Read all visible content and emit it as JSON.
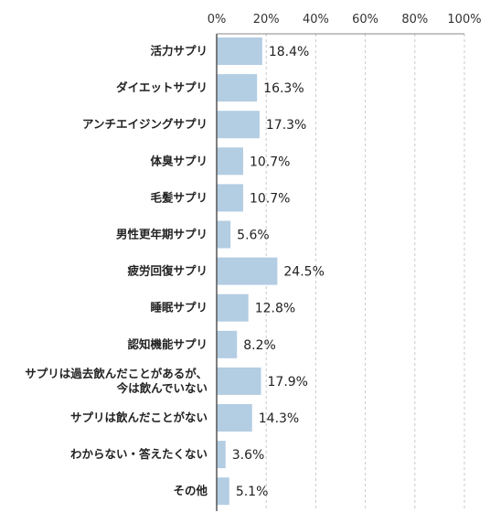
{
  "chart_data": {
    "type": "bar",
    "orientation": "horizontal",
    "x_ticks": [
      "0%",
      "20%",
      "40%",
      "60%",
      "80%",
      "100%"
    ],
    "xlim": [
      0,
      100
    ],
    "categories": [
      [
        "活力サプリ"
      ],
      [
        "ダイエットサプリ"
      ],
      [
        "アンチエイジングサプリ"
      ],
      [
        "体臭サプリ"
      ],
      [
        "毛髪サプリ"
      ],
      [
        "男性更年期サプリ"
      ],
      [
        "疲労回復サプリ"
      ],
      [
        "睡眠サプリ"
      ],
      [
        "認知機能サプリ"
      ],
      [
        "サプリは過去飲んだことがあるが、",
        "今は飲んでいない"
      ],
      [
        "サプリは飲んだことがない"
      ],
      [
        "わからない・答えたくない"
      ],
      [
        "その他"
      ]
    ],
    "values": [
      18.4,
      16.3,
      17.3,
      10.7,
      10.7,
      5.6,
      24.5,
      12.8,
      8.2,
      17.9,
      14.3,
      3.6,
      5.1
    ],
    "value_labels": [
      "18.4%",
      "16.3%",
      "17.3%",
      "10.7%",
      "10.7%",
      "5.6%",
      "24.5%",
      "12.8%",
      "8.2%",
      "17.9%",
      "14.3%",
      "3.6%",
      "5.1%"
    ],
    "bar_color": "#b3cde3",
    "grid": true,
    "grid_style": "dashed vertical",
    "legend": "none"
  }
}
